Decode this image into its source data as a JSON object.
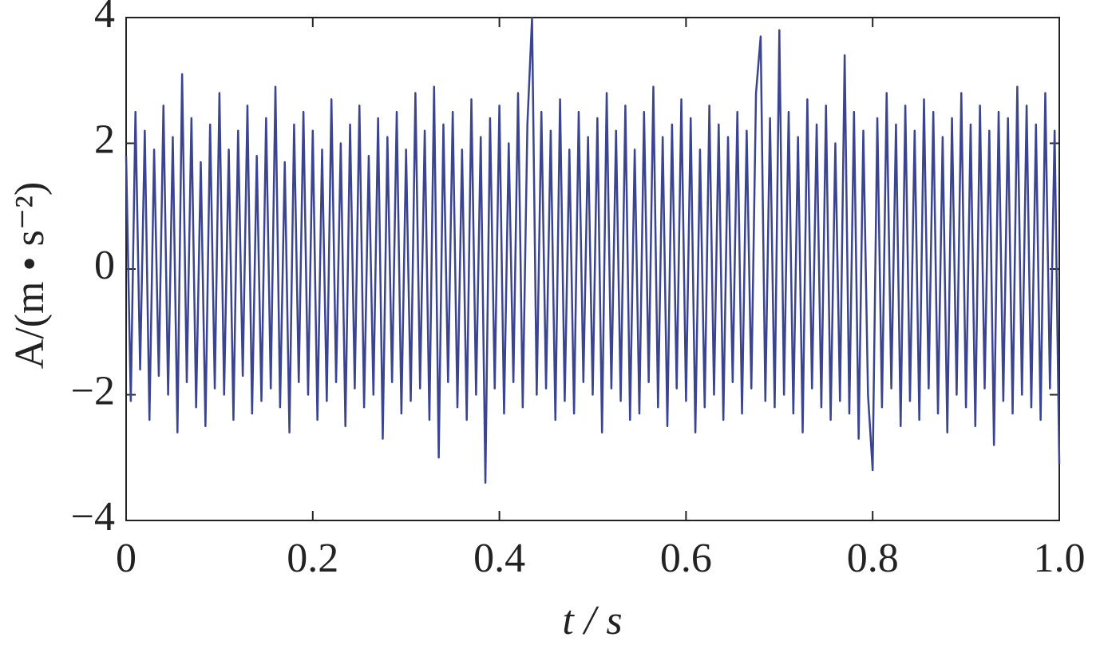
{
  "chart_data": {
    "type": "line",
    "x_label": "t / s",
    "y_label": "A/(m • s⁻²)",
    "color": "#3b4490",
    "xlim": [
      0,
      1
    ],
    "ylim": [
      -4,
      4
    ],
    "xticks": [
      0,
      0.2,
      0.4,
      0.6,
      0.8,
      {
        "value": 1,
        "label": "1.0"
      }
    ],
    "yticks": [
      {
        "value": -4,
        "label": "−4"
      },
      {
        "value": -2,
        "label": "−2"
      },
      0,
      2,
      4
    ],
    "x": [
      0,
      0.005,
      0.01,
      0.015,
      0.02,
      0.025,
      0.03,
      0.035,
      0.04,
      0.045,
      0.05,
      0.055,
      0.06,
      0.065,
      0.07,
      0.075,
      0.08,
      0.085,
      0.09,
      0.095,
      0.1,
      0.105,
      0.11,
      0.115,
      0.12,
      0.125,
      0.13,
      0.135,
      0.14,
      0.145,
      0.15,
      0.155,
      0.16,
      0.165,
      0.17,
      0.175,
      0.18,
      0.185,
      0.19,
      0.195,
      0.2,
      0.205,
      0.21,
      0.215,
      0.22,
      0.225,
      0.23,
      0.235,
      0.24,
      0.245,
      0.25,
      0.255,
      0.26,
      0.265,
      0.27,
      0.275,
      0.28,
      0.285,
      0.29,
      0.295,
      0.3,
      0.305,
      0.31,
      0.315,
      0.32,
      0.325,
      0.33,
      0.335,
      0.34,
      0.345,
      0.35,
      0.355,
      0.36,
      0.365,
      0.37,
      0.375,
      0.38,
      0.385,
      0.39,
      0.395,
      0.4,
      0.405,
      0.41,
      0.415,
      0.42,
      0.425,
      0.43,
      0.435,
      0.44,
      0.445,
      0.45,
      0.455,
      0.46,
      0.465,
      0.47,
      0.475,
      0.48,
      0.485,
      0.49,
      0.495,
      0.5,
      0.505,
      0.51,
      0.515,
      0.52,
      0.525,
      0.53,
      0.535,
      0.54,
      0.545,
      0.55,
      0.555,
      0.56,
      0.565,
      0.57,
      0.575,
      0.58,
      0.585,
      0.59,
      0.595,
      0.6,
      0.605,
      0.61,
      0.615,
      0.62,
      0.625,
      0.63,
      0.635,
      0.64,
      0.645,
      0.65,
      0.655,
      0.66,
      0.665,
      0.67,
      0.675,
      0.68,
      0.685,
      0.69,
      0.695,
      0.7,
      0.705,
      0.71,
      0.715,
      0.72,
      0.725,
      0.73,
      0.735,
      0.74,
      0.745,
      0.75,
      0.755,
      0.76,
      0.765,
      0.77,
      0.775,
      0.78,
      0.785,
      0.79,
      0.795,
      0.8,
      0.805,
      0.81,
      0.815,
      0.82,
      0.825,
      0.83,
      0.835,
      0.84,
      0.845,
      0.85,
      0.855,
      0.86,
      0.865,
      0.87,
      0.875,
      0.88,
      0.885,
      0.89,
      0.895,
      0.9,
      0.905,
      0.91,
      0.915,
      0.92,
      0.925,
      0.93,
      0.935,
      0.94,
      0.945,
      0.95,
      0.955,
      0.96,
      0.965,
      0.97,
      0.975,
      0.98,
      0.985,
      0.99,
      0.995,
      1
    ],
    "values": [
      1.8,
      -2.1,
      2.5,
      -1.6,
      2.2,
      -2.4,
      1.9,
      -1.7,
      2.6,
      -2.0,
      2.1,
      -2.6,
      3.1,
      -1.8,
      2.4,
      -2.2,
      1.7,
      -2.5,
      2.3,
      -1.9,
      2.8,
      -2.0,
      1.9,
      -2.4,
      2.2,
      -1.7,
      2.6,
      -2.3,
      1.8,
      -2.1,
      2.4,
      -1.9,
      2.9,
      -2.2,
      1.7,
      -2.6,
      2.3,
      -1.8,
      2.5,
      -2.0,
      2.2,
      -2.4,
      1.9,
      -2.1,
      2.7,
      -1.8,
      2.0,
      -2.5,
      2.3,
      -1.9,
      2.6,
      -2.2,
      1.8,
      -2.0,
      2.4,
      -2.7,
      2.1,
      -1.8,
      2.5,
      -2.3,
      1.9,
      -2.1,
      2.8,
      -1.9,
      2.2,
      -2.4,
      2.9,
      -3.0,
      2.3,
      -1.8,
      2.5,
      -2.2,
      1.9,
      -2.4,
      2.7,
      -2.0,
      2.1,
      -3.4,
      2.4,
      -1.9,
      2.6,
      -2.3,
      2.0,
      -1.8,
      2.8,
      -2.2,
      2.3,
      4.0,
      -2.0,
      2.5,
      -1.9,
      2.2,
      -2.4,
      2.7,
      -2.1,
      1.9,
      -2.3,
      2.5,
      -1.8,
      2.1,
      -2.0,
      2.4,
      -2.6,
      2.8,
      -1.9,
      2.2,
      -2.1,
      2.6,
      -2.4,
      1.9,
      -2.3,
      2.5,
      -1.8,
      2.9,
      -2.2,
      2.1,
      -2.5,
      2.3,
      -1.9,
      2.7,
      -2.1,
      2.4,
      -2.6,
      1.9,
      -2.2,
      2.6,
      -2.0,
      2.3,
      -2.4,
      2.1,
      -1.8,
      2.5,
      -2.3,
      2.2,
      -1.9,
      2.8,
      3.7,
      -2.1,
      2.4,
      -2.2,
      3.8,
      -2.0,
      2.5,
      -2.3,
      2.1,
      -2.6,
      2.7,
      -1.9,
      2.3,
      -2.2,
      2.6,
      -2.4,
      2.0,
      -2.1,
      3.4,
      -2.3,
      2.5,
      -2.7,
      2.2,
      -2.0,
      -3.2,
      2.4,
      -2.2,
      2.8,
      -1.9,
      2.3,
      -2.5,
      2.6,
      -2.1,
      2.2,
      -2.4,
      2.7,
      -1.9,
      2.5,
      -2.3,
      2.1,
      -2.6,
      2.4,
      -2.0,
      2.8,
      -2.2,
      2.3,
      -2.5,
      2.6,
      -1.9,
      2.2,
      -2.8,
      2.5,
      -2.1,
      2.4,
      -2.3,
      2.9,
      -2.0,
      2.6,
      -2.2,
      2.3,
      -2.4,
      2.8,
      -1.9,
      2.2,
      -3.1
    ]
  }
}
